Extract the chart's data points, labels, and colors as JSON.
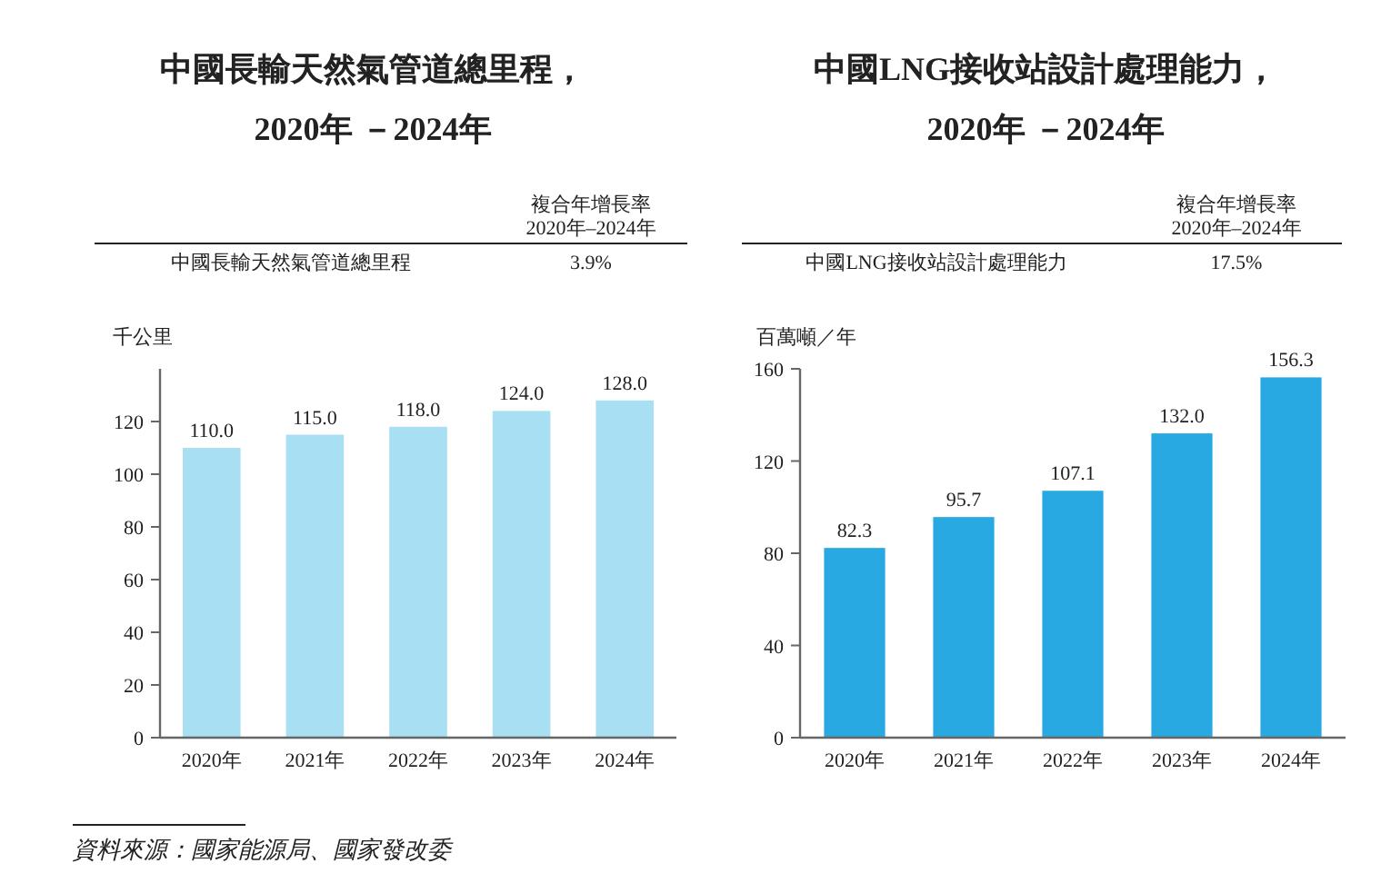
{
  "chart_data": [
    {
      "type": "bar",
      "title": "中國長輸天然氣管道總里程，",
      "subtitle": "2020年 －2024年",
      "ylabel": "千公里",
      "categories": [
        "2020年",
        "2021年",
        "2022年",
        "2023年",
        "2024年"
      ],
      "values": [
        110.0,
        115.0,
        118.0,
        124.0,
        128.0
      ],
      "value_labels": [
        "110.0",
        "115.0",
        "118.0",
        "124.0",
        "128.0"
      ],
      "color": "#a8dff2",
      "ylim": [
        0,
        140
      ],
      "yticks": [
        0,
        20,
        40,
        60,
        80,
        100,
        120
      ],
      "grid": false,
      "annotations": [
        "複合年增長率",
        "2020年–2024年",
        "中國長輸天然氣管道總里程",
        "3.9%",
        "資料來源：國家能源局、國家發改委"
      ]
    },
    {
      "type": "bar",
      "title": "中國LNG接收站設計處理能力，",
      "subtitle": "2020年 －2024年",
      "ylabel": "百萬噸／年",
      "categories": [
        "2020年",
        "2021年",
        "2022年",
        "2023年",
        "2024年"
      ],
      "values": [
        82.3,
        95.7,
        107.1,
        132.0,
        156.3
      ],
      "value_labels": [
        "82.3",
        "95.7",
        "107.1",
        "132.0",
        "156.3"
      ],
      "color": "#29a9e1",
      "ylim": [
        0,
        160
      ],
      "yticks": [
        0,
        40,
        80,
        120,
        160
      ],
      "grid": false,
      "annotations": [
        "複合年增長率",
        "2020年–2024年",
        "中國LNG接收站設計處理能力",
        "17.5%"
      ]
    }
  ]
}
